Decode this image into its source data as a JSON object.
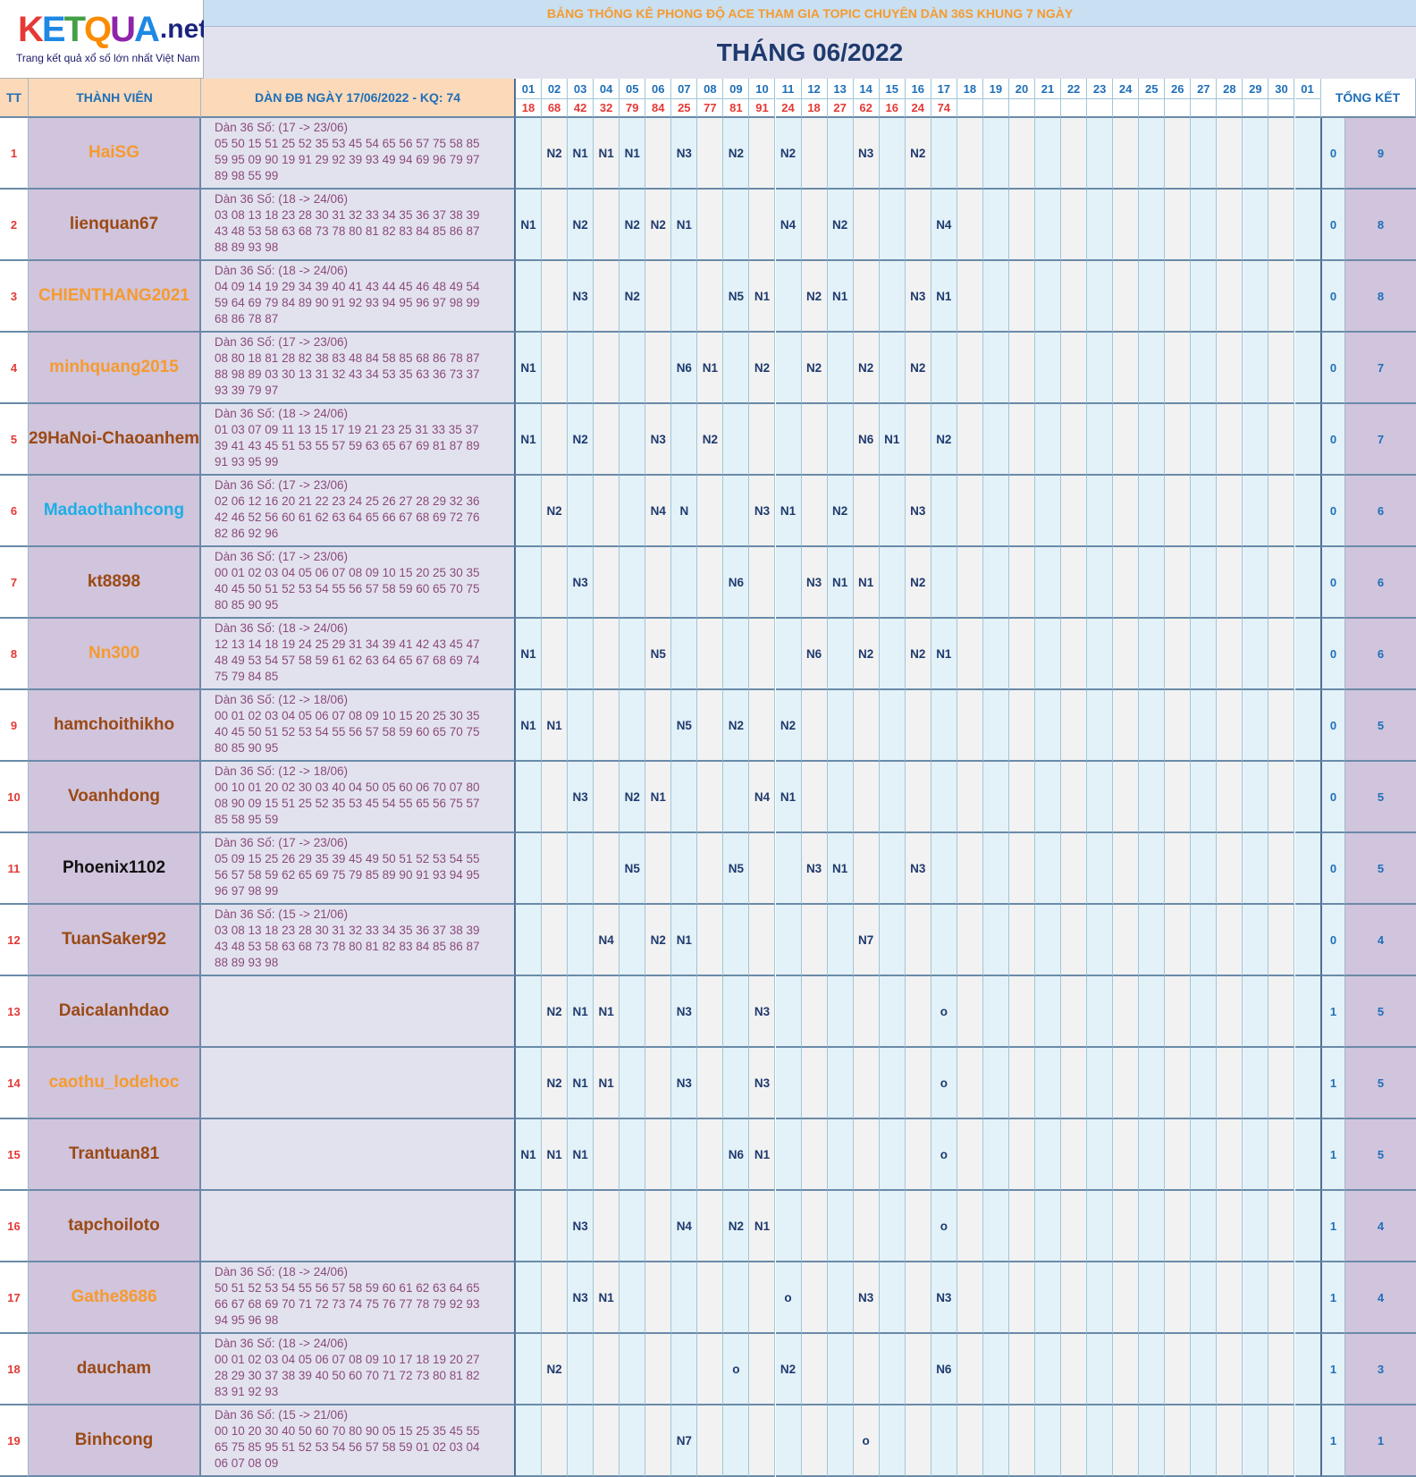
{
  "logo": {
    "brand": "KETQUA",
    "suffix": ".net",
    "tagline": "Trang kết quả xổ số lớn nhất Việt Nam"
  },
  "header": {
    "banner": "BẢNG THỐNG KÊ PHONG ĐỘ ACE THAM GIA TOPIC CHUYÊN DÀN 36S KHUNG 7 NGÀY",
    "month": "THÁNG 06/2022",
    "col_tt": "TT",
    "col_member": "THÀNH VIÊN",
    "col_dan": "DÀN ĐB NGÀY 17/06/2022 - KQ: 74",
    "col_total": "TỔNG KẾT"
  },
  "days": [
    "01",
    "02",
    "03",
    "04",
    "05",
    "06",
    "07",
    "08",
    "09",
    "10",
    "11",
    "12",
    "13",
    "14",
    "15",
    "16",
    "17",
    "18",
    "19",
    "20",
    "21",
    "22",
    "23",
    "24",
    "25",
    "26",
    "27",
    "28",
    "29",
    "30",
    "01"
  ],
  "results": [
    "18",
    "68",
    "42",
    "32",
    "79",
    "84",
    "25",
    "77",
    "81",
    "91",
    "24",
    "18",
    "27",
    "62",
    "16",
    "24",
    "74",
    "",
    "",
    "",
    "",
    "",
    "",
    "",
    "",
    "",
    "",
    "",
    "",
    "",
    ""
  ],
  "colors": {
    "orange": "#f59b2e",
    "brown": "#9a4a14",
    "blue": "#1eaee6",
    "black": "#111111"
  },
  "rows": [
    {
      "tt": "1",
      "name": "HaiSG",
      "color": "orange",
      "dan": [
        "Dàn 36 Số: (17 -> 23/06)",
        "05 50 15 51 25 52 35 53 45 54 65 56 57 75 58 85",
        "59 95 09 90 19 91 29 92 39 93 49 94 69 96 79 97",
        "89 98 55 99"
      ],
      "marks": {
        "2": "N2",
        "3": "N1",
        "4": "N1",
        "5": "N1",
        "7": "N3",
        "9": "N2",
        "11": "N2",
        "14": "N3",
        "16": "N2"
      },
      "sum1": "0",
      "sum2": "9"
    },
    {
      "tt": "2",
      "name": "lienquan67",
      "color": "brown",
      "dan": [
        "Dàn 36 Số: (18 -> 24/06)",
        "03 08 13 18 23 28 30 31 32 33 34 35 36 37 38 39",
        "43 48 53 58 63 68 73 78 80 81 82 83 84 85 86 87",
        "88 89 93 98"
      ],
      "marks": {
        "1": "N1",
        "3": "N2",
        "5": "N2",
        "6": "N2",
        "7": "N1",
        "11": "N4",
        "13": "N2",
        "17": "N4"
      },
      "sum1": "0",
      "sum2": "8"
    },
    {
      "tt": "3",
      "name": "CHIENTHANG2021",
      "color": "orange",
      "dan": [
        "Dàn 36 Số: (18 -> 24/06)",
        "04 09 14 19 29 34 39 40 41 43 44 45 46 48 49 54",
        "59 64 69 79 84 89 90 91 92 93 94 95 96 97 98 99",
        "68 86 78 87"
      ],
      "marks": {
        "3": "N3",
        "5": "N2",
        "9": "N5",
        "10": "N1",
        "12": "N2",
        "13": "N1",
        "16": "N3",
        "17": "N1"
      },
      "sum1": "0",
      "sum2": "8"
    },
    {
      "tt": "4",
      "name": "minhquang2015",
      "color": "orange",
      "dan": [
        "Dàn 36 Số: (17 -> 23/06)",
        "08 80 18 81 28 82 38 83 48 84 58 85 68 86 78 87",
        "88 98 89 03 30 13 31 32 43 34 53 35 63 36 73 37",
        "93 39 79 97"
      ],
      "marks": {
        "1": "N1",
        "7": "N6",
        "8": "N1",
        "10": "N2",
        "12": "N2",
        "14": "N2",
        "16": "N2"
      },
      "sum1": "0",
      "sum2": "7"
    },
    {
      "tt": "5",
      "name": "29HaNoi-Chaoanhem",
      "color": "brown",
      "dan": [
        "Dàn 36 Số: (18 -> 24/06)",
        "01 03 07 09 11 13 15 17 19 21 23 25 31 33 35 37",
        "39 41 43 45 51 53 55 57 59 63 65 67 69 81 87 89",
        "91 93 95 99"
      ],
      "marks": {
        "1": "N1",
        "3": "N2",
        "6": "N3",
        "8": "N2",
        "14": "N6",
        "15": "N1",
        "17": "N2"
      },
      "sum1": "0",
      "sum2": "7"
    },
    {
      "tt": "6",
      "name": "Madaothanhcong",
      "color": "blue",
      "dan": [
        "Dàn 36 Số: (17 -> 23/06)",
        "02 06 12 16 20 21 22 23 24 25 26 27 28 29 32 36",
        "42 46 52 56 60 61 62 63 64 65 66 67 68 69 72 76",
        "82 86 92 96"
      ],
      "marks": {
        "2": "N2",
        "6": "N4",
        "7": "N",
        "10": "N3",
        "11": "N1",
        "13": "N2",
        "16": "N3"
      },
      "sum1": "0",
      "sum2": "6"
    },
    {
      "tt": "7",
      "name": "kt8898",
      "color": "brown",
      "dan": [
        "Dàn 36 Số: (17 -> 23/06)",
        "00 01 02 03 04 05 06 07 08 09 10 15 20 25 30 35",
        "40 45 50 51 52 53 54 55 56 57 58 59 60 65 70 75",
        "80 85 90 95"
      ],
      "marks": {
        "3": "N3",
        "9": "N6",
        "12": "N3",
        "13": "N1",
        "14": "N1",
        "16": "N2"
      },
      "sum1": "0",
      "sum2": "6"
    },
    {
      "tt": "8",
      "name": "Nn300",
      "color": "orange",
      "dan": [
        "Dàn 36 Số: (18 -> 24/06)",
        "12 13 14 18 19 24 25 29 31 34 39 41 42 43 45 47",
        "48 49 53 54 57 58 59 61 62 63 64 65 67 68 69 74",
        "75 79 84 85"
      ],
      "marks": {
        "1": "N1",
        "6": "N5",
        "12": "N6",
        "14": "N2",
        "16": "N2",
        "17": "N1"
      },
      "sum1": "0",
      "sum2": "6"
    },
    {
      "tt": "9",
      "name": "hamchoithikho",
      "color": "brown",
      "dan": [
        "Dàn 36 Số: (12 -> 18/06)",
        "00 01 02 03 04 05 06 07 08 09 10 15 20 25 30 35",
        "40 45 50 51 52 53 54 55 56 57 58 59 60 65 70 75",
        "80 85 90 95"
      ],
      "marks": {
        "1": "N1",
        "2": "N1",
        "7": "N5",
        "9": "N2",
        "11": "N2"
      },
      "sum1": "0",
      "sum2": "5"
    },
    {
      "tt": "10",
      "name": "Voanhdong",
      "color": "brown",
      "dan": [
        "Dàn 36 Số: (12 -> 18/06)",
        "00 10 01 20 02 30 03 40 04 50 05 60 06 70 07 80",
        "08 90 09 15 51 25 52 35 53 45 54 55 65 56 75 57",
        "85 58 95 59"
      ],
      "marks": {
        "3": "N3",
        "5": "N2",
        "6": "N1",
        "10": "N4",
        "11": "N1"
      },
      "sum1": "0",
      "sum2": "5"
    },
    {
      "tt": "11",
      "name": "Phoenix1102",
      "color": "black",
      "dan": [
        "Dàn 36 Số: (17 -> 23/06)",
        "05 09 15 25 26 29 35 39 45 49 50 51 52 53 54 55",
        "56 57 58 59 62 65 69 75 79 85 89 90 91 93 94 95",
        "96 97 98 99"
      ],
      "marks": {
        "5": "N5",
        "9": "N5",
        "12": "N3",
        "13": "N1",
        "16": "N3"
      },
      "sum1": "0",
      "sum2": "5"
    },
    {
      "tt": "12",
      "name": "TuanSaker92",
      "color": "brown",
      "dan": [
        "Dàn 36 Số: (15 -> 21/06)",
        "03 08 13 18 23 28 30 31 32 33 34 35 36 37 38 39",
        "43 48 53 58 63 68 73 78 80 81 82 83 84 85 86 87",
        "88 89 93 98"
      ],
      "marks": {
        "4": "N4",
        "6": "N2",
        "7": "N1",
        "14": "N7"
      },
      "sum1": "0",
      "sum2": "4"
    },
    {
      "tt": "13",
      "name": "Daicalanhdao",
      "color": "brown",
      "dan": [],
      "marks": {
        "2": "N2",
        "3": "N1",
        "4": "N1",
        "7": "N3",
        "10": "N3",
        "17": "o"
      },
      "sum1": "1",
      "sum2": "5"
    },
    {
      "tt": "14",
      "name": "caothu_lodehoc",
      "color": "orange",
      "dan": [],
      "marks": {
        "2": "N2",
        "3": "N1",
        "4": "N1",
        "7": "N3",
        "10": "N3",
        "17": "o"
      },
      "sum1": "1",
      "sum2": "5"
    },
    {
      "tt": "15",
      "name": "Trantuan81",
      "color": "brown",
      "dan": [],
      "marks": {
        "1": "N1",
        "2": "N1",
        "3": "N1",
        "9": "N6",
        "10": "N1",
        "17": "o"
      },
      "sum1": "1",
      "sum2": "5"
    },
    {
      "tt": "16",
      "name": "tapchoiloto",
      "color": "brown",
      "dan": [],
      "marks": {
        "3": "N3",
        "7": "N4",
        "9": "N2",
        "10": "N1",
        "17": "o"
      },
      "sum1": "1",
      "sum2": "4"
    },
    {
      "tt": "17",
      "name": "Gathe8686",
      "color": "orange",
      "dan": [
        "Dàn 36 Số: (18 -> 24/06)",
        "50 51 52 53 54 55 56 57 58 59 60 61 62 63 64 65",
        "66 67 68 69 70 71 72 73 74 75 76 77 78 79 92 93",
        "94 95 96 98"
      ],
      "marks": {
        "3": "N3",
        "4": "N1",
        "11": "o",
        "14": "N3",
        "17": "N3"
      },
      "sum1": "1",
      "sum2": "4"
    },
    {
      "tt": "18",
      "name": "daucham",
      "color": "brown",
      "dan": [
        "Dàn 36 Số: (18 -> 24/06)",
        "00 01 02 03 04 05 06 07 08 09 10 17 18 19 20 27",
        "28 29 30 37 38 39 40 50 60 70 71 72 73 80 81 82",
        "83 91 92 93"
      ],
      "marks": {
        "2": "N2",
        "9": "o",
        "11": "N2",
        "17": "N6"
      },
      "sum1": "1",
      "sum2": "3"
    },
    {
      "tt": "19",
      "name": "Binhcong",
      "color": "brown",
      "dan": [
        "Dàn 36 Số: (15 -> 21/06)",
        "00 10 20 30 40 50 60 70 80 90 05 15 25 35 45 55",
        "65 75 85 95 51 52 53 54 56 57 58 59 01 02 03 04",
        "06 07 08 09"
      ],
      "marks": {
        "7": "N7",
        "14": "o"
      },
      "sum1": "1",
      "sum2": "1"
    }
  ]
}
